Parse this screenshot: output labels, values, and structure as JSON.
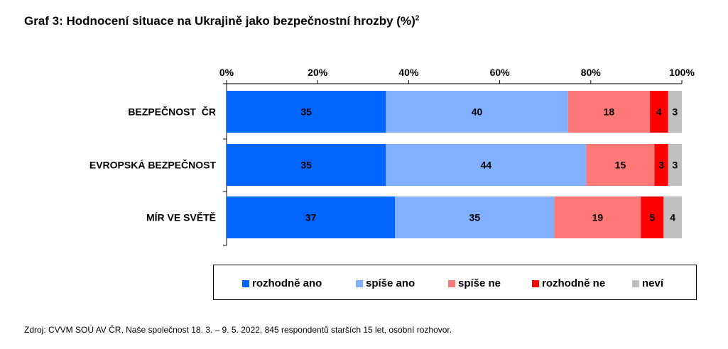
{
  "title": "Graf 3: Hodnocení situace na Ukrajině jako bezpečnostní hrozby (%)",
  "title_sup": "2",
  "source": "Zdroj: CVVM SOÚ AV ČR, Naše společnost 18. 3. – 9. 5. 2022, 845 respondentů starších 15 let, osobní rozhovor.",
  "chart_data": {
    "type": "bar",
    "orientation": "horizontal",
    "stacked": true,
    "categories": [
      "BEZPEČNOST  ČR",
      "EVROPSKÁ BEZPEČNOST",
      "MÍR VE SVĚTĚ"
    ],
    "series": [
      {
        "name": "rozhodně ano",
        "values": [
          35,
          35,
          37
        ],
        "color": "#0066ff"
      },
      {
        "name": "spíše ano",
        "values": [
          40,
          44,
          35
        ],
        "color": "#80b0ff"
      },
      {
        "name": "spíše ne",
        "values": [
          18,
          15,
          19
        ],
        "color": "#ff7878"
      },
      {
        "name": "rozhodně ne",
        "values": [
          4,
          3,
          5
        ],
        "color": "#ff0000"
      },
      {
        "name": "neví",
        "values": [
          3,
          3,
          4
        ],
        "color": "#c0c0c0"
      }
    ],
    "xlim": [
      0,
      100
    ],
    "x_ticks": [
      "0%",
      "20%",
      "40%",
      "60%",
      "80%",
      "100%"
    ],
    "x_axis_position": "top",
    "legend_position": "bottom",
    "grid": false
  }
}
